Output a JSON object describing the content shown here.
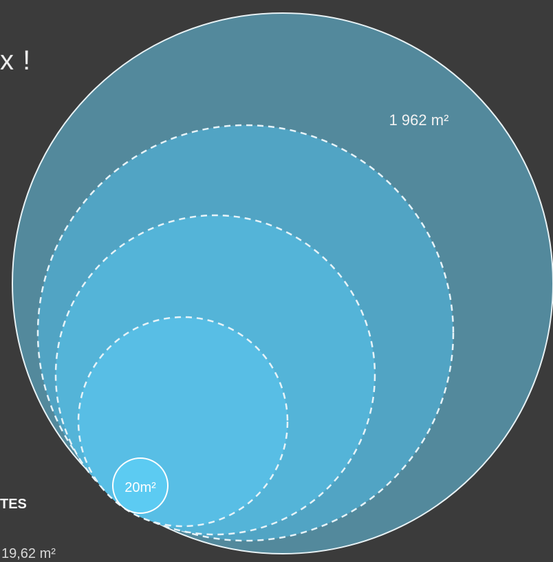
{
  "header": {
    "title_fragment": "x !"
  },
  "legend": {
    "label_fragment": "TES",
    "value_fragment": "19,62 m²"
  },
  "circles": [
    {
      "id": "largest",
      "area_label": "1 962 m²",
      "color": "#53899c",
      "stroke": "#e8f2f5",
      "dashed": false
    },
    {
      "id": "large",
      "area_label": "",
      "color": "#51a4c4",
      "stroke": "#e6f3f8",
      "dashed": true
    },
    {
      "id": "medium",
      "area_label": "",
      "color": "#54b4d8",
      "stroke": "#e6f3f8",
      "dashed": true
    },
    {
      "id": "small",
      "area_label": "",
      "color": "#58bee5",
      "stroke": "#e6f3f8",
      "dashed": true
    },
    {
      "id": "smallest",
      "area_label": "20m²",
      "color": "#5ccbf2",
      "stroke": "#ffffff",
      "dashed": false
    }
  ],
  "colors": {
    "background": "#3b3b3b",
    "text": "#f0f0f0"
  }
}
